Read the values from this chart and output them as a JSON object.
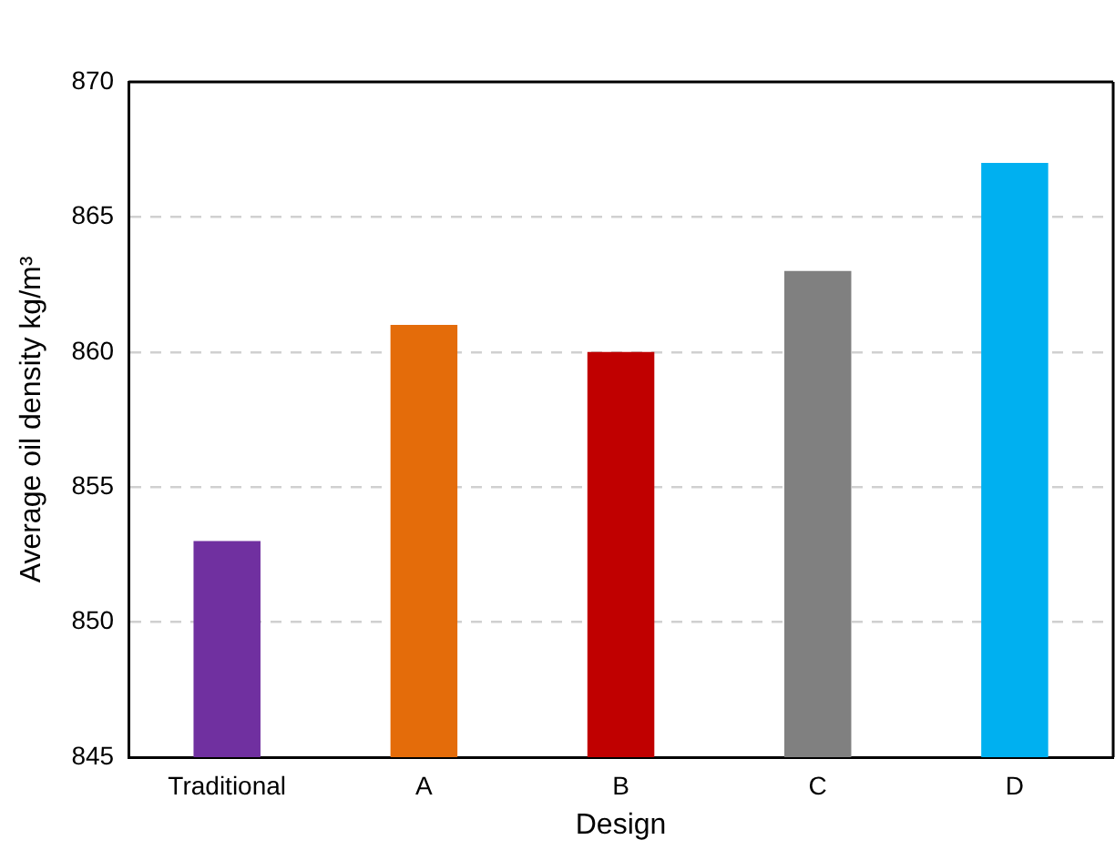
{
  "chart_data": {
    "type": "bar",
    "xlabel": "Design",
    "ylabel": "Average oil density kg/m³",
    "categories": [
      "Traditional",
      "A",
      "B",
      "C",
      "D"
    ],
    "values": [
      853,
      861,
      860,
      863,
      867
    ],
    "colors": [
      "#7030a0",
      "#e46c0a",
      "#c00000",
      "#808080",
      "#00b0f0"
    ],
    "ylim": [
      845,
      870
    ],
    "yticks": [
      845,
      850,
      855,
      860,
      865,
      870
    ],
    "grid": "y",
    "legend": false
  }
}
